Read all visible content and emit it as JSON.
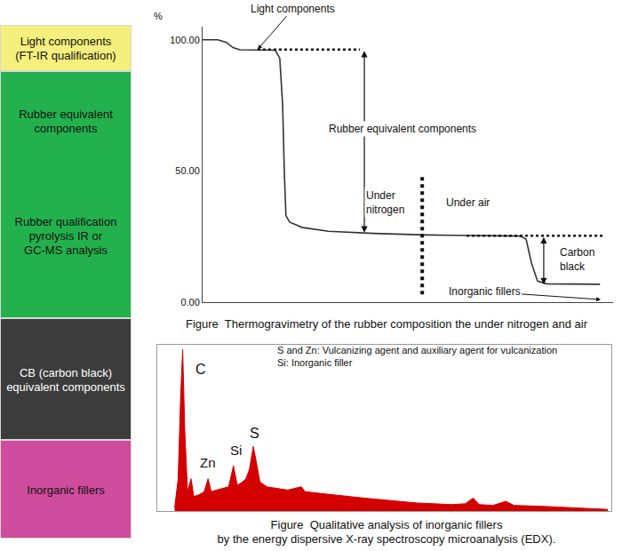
{
  "side_panel": [
    {
      "color": "#f5ef7d",
      "texts": [
        [
          "Light components",
          "(FT-IR qualification)"
        ]
      ]
    },
    {
      "color": "#23b14d",
      "texts": [
        [
          "Rubber equivalent",
          "components"
        ],
        [
          "Rubber qualification",
          "pyrolysis IR or",
          "GC-MS analysis"
        ]
      ]
    },
    {
      "color": "#3c3c3c",
      "texts": [
        [
          "CB (carbon black)",
          "equivalent components"
        ]
      ]
    },
    {
      "color": "#cf4d9e",
      "texts": [
        [
          "Inorganic fillers"
        ]
      ]
    }
  ],
  "chart_data": [
    {
      "type": "line",
      "caption": "Figure  Thermogravimetry of the rubber composition the under nitrogen and air",
      "y_label": "%",
      "x": [
        0,
        3.7,
        5.8,
        7.4,
        9.1,
        17.7,
        18.8,
        19.5,
        19.9,
        20.3,
        21.2,
        24.2,
        30.7,
        41.6,
        54.5,
        65.4,
        77.3,
        78.8,
        80.1,
        81.6,
        83.8,
        96.8
      ],
      "values": [
        100,
        100,
        99,
        97,
        96.2,
        96,
        93,
        75,
        50,
        33,
        30.5,
        28.5,
        27,
        26.2,
        25.6,
        25.3,
        25.2,
        24,
        15,
        8,
        7,
        6.8
      ],
      "color": "#333333",
      "xlim": [
        0,
        100
      ],
      "xticks": [],
      "ylim": [
        0,
        105
      ],
      "yticks": [
        {
          "value": 0,
          "label": "0.00"
        },
        {
          "value": 50,
          "label": "50.00"
        },
        {
          "value": 100,
          "label": "100.00"
        }
      ],
      "grid": false,
      "tick_labels": "y",
      "dotted_lines": [
        {
          "x": [
            13.4,
            38.3
          ],
          "y": [
            96.3,
            96.3
          ]
        },
        {
          "x": [
            64.3,
            97.8
          ],
          "y": [
            25.3,
            25.3
          ]
        },
        {
          "x": [
            53.5,
            53.5
          ],
          "y": [
            3,
            48
          ]
        }
      ],
      "double_arrows": [
        {
          "x": [
            39.4,
            39.4
          ],
          "y": [
            96.3,
            26.5
          ]
        },
        {
          "x": [
            83.1,
            83.1
          ],
          "y": [
            25.3,
            6.8
          ]
        }
      ],
      "annotations": [
        {
          "text": "Light components",
          "x": 13.4,
          "y": 96.3,
          "arrow": true
        },
        {
          "text": "Inorganic fillers",
          "x": 97,
          "y": 1,
          "arrow": true
        },
        {
          "text": "Rubber equivalent components",
          "x": 48.7,
          "y": 66
        },
        {
          "text": "Under\nnitrogen",
          "x": 44.4,
          "y": 38
        },
        {
          "text": "Under air",
          "x": 64.7,
          "y": 38
        },
        {
          "text": "Carbon\nblack",
          "x": 91.3,
          "y": 16.3
        }
      ]
    },
    {
      "type": "area",
      "caption": "Figure  Qualitative analysis of inorganic fillers\nby the energy dispersive X-ray spectroscopy microanalysis (EDX).",
      "x": [
        0.05,
        0.15,
        0.22,
        0.28,
        0.34,
        0.42,
        0.52,
        0.6,
        0.75,
        0.9,
        1.01,
        1.1,
        1.25,
        1.4,
        1.6,
        1.74,
        1.85,
        2.0,
        2.1,
        2.2,
        2.31,
        2.4,
        2.5,
        2.7,
        3.0,
        3.3,
        3.69,
        3.8,
        4.2,
        4.6,
        5.0,
        5.5,
        6.0,
        6.5,
        7.0,
        7.5,
        8.0,
        8.4,
        8.63,
        8.8,
        9.2,
        9.57,
        9.8,
        10.5,
        11.0,
        11.5,
        12.0,
        12.5
      ],
      "values": [
        2,
        20,
        70,
        100,
        50,
        12,
        20,
        9,
        10,
        12,
        20,
        12,
        13,
        14,
        15,
        28,
        16,
        18,
        20,
        26,
        40,
        30,
        18,
        15,
        14,
        13,
        15,
        12,
        11,
        10,
        9,
        8,
        7,
        6,
        5,
        4.5,
        4,
        4.5,
        8,
        4,
        3.5,
        6,
        3.5,
        3,
        2.5,
        2,
        1.5,
        1
      ],
      "color": "#d40000",
      "xlim": [
        -0.45,
        12.6
      ],
      "xticks": [],
      "ylim": [
        0,
        103
      ],
      "yticks": [],
      "grid": false,
      "tick_labels": false,
      "annotations": [
        {
          "text": "S and Zn: Vulcanizing agent and auxiliary agent for vulcanization\nSi: Inorganic filler",
          "x": 2.95,
          "y": 96
        },
        {
          "text": "C",
          "x": 0.8,
          "y": 88
        },
        {
          "text": "Zn",
          "x": 1.0,
          "y": 30
        },
        {
          "text": "Si",
          "x": 1.8,
          "y": 38
        },
        {
          "text": "S",
          "x": 2.35,
          "y": 48
        }
      ]
    }
  ]
}
